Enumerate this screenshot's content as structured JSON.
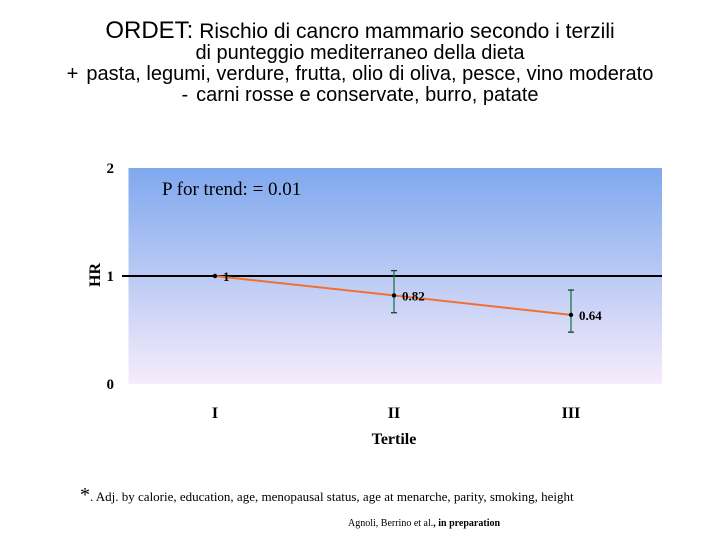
{
  "title": {
    "head": "ORDET:",
    "line1_rest": "Rischio di cancro mammario secondo i terzili",
    "line2": "di punteggio mediterraneo della dieta",
    "plus_sign": "+",
    "line3": "pasta, legumi, verdure, frutta, olio di oliva, pesce, vino moderato",
    "minus_sign": "-",
    "line4": "carni rosse e conservate, burro, patate"
  },
  "chart_data": {
    "type": "line",
    "categories": [
      "I",
      "II",
      "III"
    ],
    "series": [
      {
        "values": [
          1,
          0.82,
          0.64
        ],
        "value_labels": [
          "1",
          "0.82",
          "0.64"
        ],
        "ci_low": [
          null,
          0.66,
          0.48
        ],
        "ci_high": [
          null,
          1.05,
          0.87
        ],
        "color": "#f07030"
      }
    ],
    "xlabel": "Tertile",
    "ylabel": "HR",
    "ylim": [
      0,
      2
    ],
    "yticks": [
      0,
      1,
      2
    ],
    "reference_line": 1,
    "annotation": "P for trend: = 0.01",
    "background_gradient": [
      "#7fa8ee",
      "#f6ecfb"
    ],
    "errorbar_color": "#1a7a4a"
  },
  "footnote": {
    "star": "*",
    "text": ". Adj. by calorie, education,  age, menopausal status,  age at menarche, parity, smoking, height"
  },
  "citation": {
    "authors": "Agnoli, Berrino et al.",
    "status": ", in preparation"
  }
}
